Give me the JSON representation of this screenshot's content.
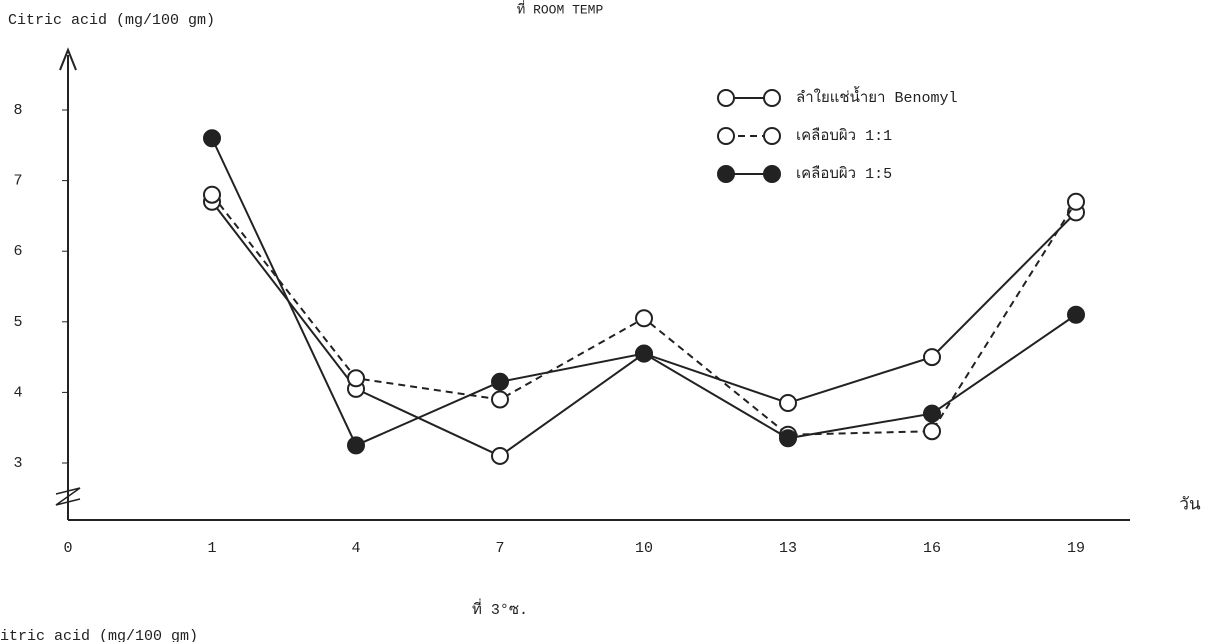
{
  "chart_data": {
    "type": "line",
    "title": "ที่ ROOM TEMP",
    "y_label": "Citric acid (mg/100 gm)",
    "x_label": "วัน",
    "subtitle": "ที่ 3°ซ.",
    "footer_text": "itric acid (mg/100 gm)",
    "categories": [
      "0",
      "1",
      "4",
      "7",
      "10",
      "13",
      "16",
      "19"
    ],
    "series": [
      {
        "name": "ลำใยแช่น้ำยา Benomyl",
        "color": "#222222",
        "marker": "open",
        "dashed": false,
        "values": [
          null,
          6.7,
          4.05,
          3.1,
          4.55,
          3.85,
          4.5,
          6.55
        ]
      },
      {
        "name": "เคลือบผิว 1:1",
        "color": "#222222",
        "marker": "open",
        "dashed": true,
        "values": [
          null,
          6.8,
          4.2,
          3.9,
          5.05,
          3.4,
          3.45,
          6.7
        ]
      },
      {
        "name": "เคลือบผิว 1:5",
        "color": "#222222",
        "marker": "filled",
        "dashed": false,
        "values": [
          null,
          7.6,
          3.25,
          4.15,
          4.55,
          3.35,
          3.7,
          5.1
        ]
      }
    ],
    "ylim": [
      2.2,
      8.8
    ],
    "yticks": [
      3,
      4,
      5,
      6,
      7,
      8
    ],
    "grid": false,
    "legend": "top-right"
  }
}
